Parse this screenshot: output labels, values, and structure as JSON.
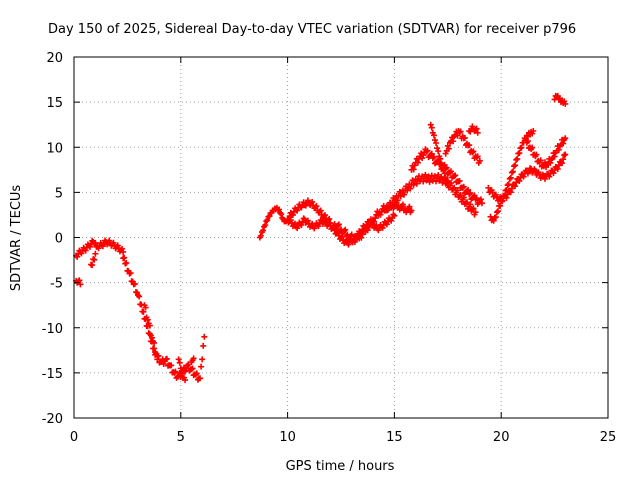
{
  "chart_data": {
    "type": "scatter",
    "title": "Day 150 of 2025, Sidereal Day-to-day VTEC variation (SDTVAR) for receiver p796",
    "xlabel": "GPS time / hours",
    "ylabel": "SDTVAR / TECUs",
    "xlim": [
      0,
      25
    ],
    "ylim": [
      -20,
      20
    ],
    "xticks": [
      "0",
      "5",
      "10",
      "15",
      "20",
      "25"
    ],
    "yticks": [
      "-20",
      "-15",
      "-10",
      "-5",
      "0",
      "5",
      "10",
      "15",
      "20"
    ],
    "grid": true,
    "marker": "+",
    "color": "#ff0000",
    "series": [
      {
        "name": "",
        "x": [
          0.1,
          0.3
        ],
        "y": [
          -4.8,
          -5.2
        ]
      },
      {
        "name": "",
        "x": [
          0.1,
          0.3,
          0.5,
          0.7,
          0.9,
          1.0,
          1.1,
          1.3,
          1.5,
          1.7,
          1.9,
          2.1,
          2.3
        ],
        "y": [
          -2.0,
          -1.6,
          -1.3,
          -0.9,
          -0.5,
          -0.6,
          -1.0,
          -0.8,
          -0.5,
          -0.6,
          -0.9,
          -1.2,
          -1.6
        ]
      },
      {
        "name": "",
        "x": [
          0.8,
          0.9,
          1.0
        ],
        "y": [
          -3.0,
          -2.4,
          -1.8
        ]
      },
      {
        "name": "",
        "x": [
          2.3,
          2.4,
          2.6,
          2.8,
          3.0,
          3.1,
          3.2,
          3.3,
          3.4,
          3.5,
          3.6,
          3.7,
          3.8,
          3.9
        ],
        "y": [
          -2.3,
          -2.9,
          -4.0,
          -5.2,
          -6.4,
          -7.4,
          -8.2,
          -9.0,
          -9.8,
          -10.6,
          -11.5,
          -12.3,
          -13.0,
          -13.5
        ]
      },
      {
        "name": "",
        "x": [
          3.3,
          3.5,
          3.7,
          3.9,
          4.1,
          4.3,
          4.5,
          4.7,
          4.9,
          5.1,
          5.3,
          5.5,
          5.7,
          5.9,
          6.0,
          6.1
        ],
        "y": [
          -7.5,
          -9.5,
          -11.5,
          -13.2,
          -13.8,
          -13.5,
          -14.2,
          -15.0,
          -15.4,
          -14.8,
          -14.2,
          -14.6,
          -15.2,
          -15.6,
          -13.5,
          -11.0
        ]
      },
      {
        "name": "",
        "x": [
          4.9,
          5.0,
          5.1,
          5.2
        ],
        "y": [
          -13.5,
          -14.5,
          -15.5,
          -15.8
        ]
      },
      {
        "name": "",
        "x": [
          5.5,
          5.6
        ],
        "y": [
          -13.8,
          -13.4
        ]
      },
      {
        "name": "",
        "x": [
          8.7,
          8.8,
          8.9,
          9.0,
          9.1,
          9.2,
          9.3,
          9.4,
          9.5,
          9.6,
          9.7,
          9.8,
          9.9,
          10.0,
          10.2,
          10.4,
          10.6,
          10.8,
          11.0,
          11.2,
          11.4,
          11.6,
          11.8,
          12.0
        ],
        "y": [
          0.0,
          0.6,
          1.2,
          1.8,
          2.3,
          2.7,
          3.0,
          3.2,
          3.3,
          3.1,
          2.6,
          2.0,
          1.8,
          2.0,
          2.5,
          3.0,
          3.4,
          3.6,
          3.8,
          3.5,
          3.0,
          2.5,
          2.0,
          1.6
        ]
      },
      {
        "name": "",
        "x": [
          10.0,
          10.2,
          10.4,
          10.6,
          10.8,
          11.0,
          11.2,
          11.4,
          11.6,
          11.8,
          12.0,
          12.2,
          12.4,
          12.6,
          12.8,
          13.0,
          13.2,
          13.4,
          13.6,
          13.8,
          14.0,
          14.2,
          14.4,
          14.6,
          14.8,
          15.0
        ],
        "y": [
          2.0,
          1.6,
          1.2,
          1.5,
          2.0,
          1.5,
          1.2,
          1.4,
          1.8,
          1.6,
          1.3,
          0.8,
          0.2,
          -0.3,
          -0.6,
          -0.4,
          0.0,
          0.6,
          1.2,
          1.6,
          1.4,
          1.0,
          1.2,
          1.6,
          2.0,
          2.4
        ]
      },
      {
        "name": "",
        "x": [
          12.2,
          12.5,
          12.8,
          13.1,
          13.4,
          13.7,
          14.0,
          14.3,
          14.6,
          14.9,
          15.2,
          15.5,
          15.8
        ],
        "y": [
          1.5,
          0.9,
          0.3,
          -0.2,
          0.2,
          1.0,
          2.0,
          2.8,
          3.3,
          3.6,
          3.5,
          3.2,
          3.0
        ]
      },
      {
        "name": "",
        "x": [
          14.6,
          14.9,
          15.2,
          15.5,
          15.8,
          16.1,
          16.4,
          16.7,
          17.0,
          17.3,
          17.6,
          17.9,
          18.2,
          18.5,
          18.8
        ],
        "y": [
          3.0,
          3.9,
          4.6,
          5.2,
          5.9,
          6.4,
          6.6,
          6.5,
          6.6,
          6.4,
          5.8,
          5.0,
          4.2,
          3.4,
          2.8
        ]
      },
      {
        "name": "",
        "x": [
          15.8,
          16.0,
          16.2,
          16.5,
          16.8,
          17.1,
          17.4,
          17.6,
          17.8,
          18.0,
          18.2,
          18.5,
          18.8,
          19.1
        ],
        "y": [
          7.5,
          8.3,
          9.0,
          9.5,
          8.8,
          8.1,
          7.6,
          7.2,
          6.8,
          6.2,
          5.5,
          4.8,
          4.2,
          3.8
        ]
      },
      {
        "name": "",
        "x": [
          16.7,
          16.8,
          16.9,
          17.0,
          17.1,
          17.2,
          17.3,
          17.4,
          17.5
        ],
        "y": [
          12.5,
          11.6,
          10.8,
          9.9,
          9.0,
          8.2,
          7.4,
          6.6,
          5.8
        ]
      },
      {
        "name": "",
        "x": [
          17.4,
          17.6,
          17.8,
          18.0,
          18.2,
          18.4,
          18.6,
          18.8,
          19.0
        ],
        "y": [
          9.3,
          10.5,
          11.2,
          11.8,
          11.2,
          10.4,
          9.6,
          9.0,
          8.5
        ]
      },
      {
        "name": "",
        "x": [
          18.5,
          18.7,
          18.9
        ],
        "y": [
          11.8,
          12.0,
          11.6
        ]
      },
      {
        "name": "",
        "x": [
          19.5,
          19.6,
          19.7,
          19.8,
          19.9,
          20.0,
          20.1,
          20.2,
          20.3,
          20.4,
          20.5,
          20.6,
          20.7,
          20.8,
          20.9,
          21.0,
          21.1,
          21.2,
          21.3,
          21.4,
          21.5
        ],
        "y": [
          2.3,
          2.0,
          2.2,
          2.8,
          3.5,
          4.0,
          4.6,
          5.2,
          5.8,
          6.5,
          7.2,
          7.9,
          8.6,
          9.3,
          9.9,
          10.5,
          11.0,
          11.3,
          11.6,
          11.7,
          11.8
        ]
      },
      {
        "name": "",
        "x": [
          19.4,
          19.6,
          19.8,
          20.0,
          20.2,
          20.4,
          20.6,
          20.8,
          21.0,
          21.2,
          21.4,
          21.6,
          21.8,
          22.0,
          22.2,
          22.4,
          22.6,
          22.8,
          23.0
        ],
        "y": [
          5.5,
          5.0,
          4.5,
          4.3,
          4.6,
          5.2,
          5.9,
          6.5,
          7.0,
          7.4,
          7.6,
          7.4,
          7.0,
          6.8,
          7.0,
          7.4,
          7.8,
          8.4,
          9.2
        ]
      },
      {
        "name": "",
        "x": [
          21.2,
          21.4,
          21.6,
          21.8,
          22.0,
          22.2,
          22.4,
          22.6,
          22.8,
          23.0
        ],
        "y": [
          10.5,
          9.8,
          9.0,
          8.3,
          7.9,
          8.2,
          8.8,
          9.6,
          10.3,
          11.0
        ]
      },
      {
        "name": "",
        "x": [
          22.5,
          22.6,
          22.7,
          22.8,
          22.9,
          23.0
        ],
        "y": [
          15.3,
          15.6,
          15.3,
          15.0,
          14.9,
          14.8
        ]
      }
    ]
  }
}
